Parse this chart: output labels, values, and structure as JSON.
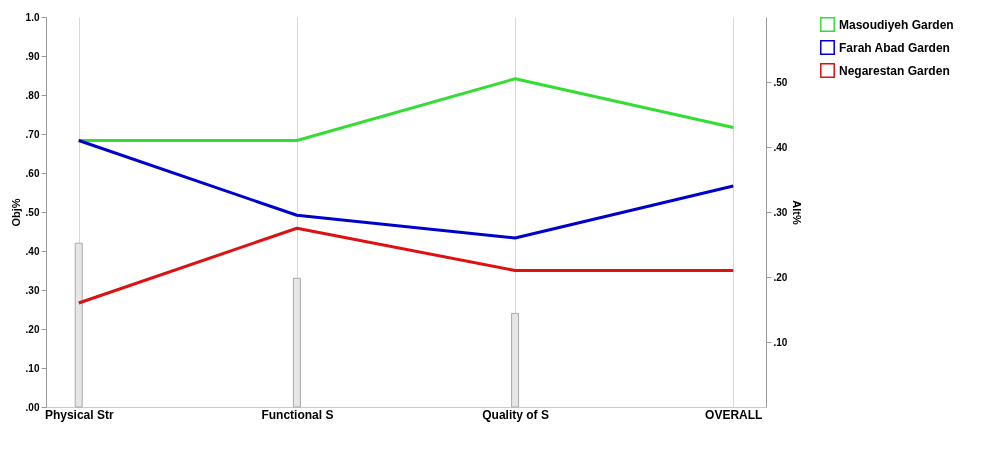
{
  "chart_data": {
    "type": "line",
    "categories": [
      "Physical Str",
      "Functional S",
      "Quality of S",
      "OVERALL"
    ],
    "ylabel": "Obj%",
    "y2label": "Alt%",
    "series": [
      {
        "type": "bar",
        "axis": "y",
        "color": "#e6e6e6",
        "values": [
          0.42,
          0.33,
          0.24,
          null
        ]
      },
      {
        "name": "Masoudiyeh Garden",
        "axis": "y2",
        "color": "#33dd33",
        "values": [
          0.41,
          0.41,
          0.505,
          0.43
        ]
      },
      {
        "name": "Farah Abad Garden",
        "axis": "y2",
        "color": "#0000cc",
        "values": [
          0.41,
          0.295,
          0.26,
          0.34
        ]
      },
      {
        "name": "Negarestan Garden",
        "axis": "y2",
        "color": "#dd1111",
        "values": [
          0.16,
          0.275,
          0.21,
          0.21
        ]
      }
    ],
    "ylim": [
      0,
      1
    ],
    "yticks": [
      {
        "value": 0,
        "label": ".00"
      },
      {
        "value": 0.1,
        "label": ".10"
      },
      {
        "value": 0.2,
        "label": ".20"
      },
      {
        "value": 0.3,
        "label": ".30"
      },
      {
        "value": 0.4,
        "label": ".40"
      },
      {
        "value": 0.5,
        "label": ".50"
      },
      {
        "value": 0.6,
        "label": ".60"
      },
      {
        "value": 0.7,
        "label": ".70"
      },
      {
        "value": 0.8,
        "label": ".80"
      },
      {
        "value": 0.9,
        "label": ".90"
      },
      {
        "value": 1,
        "label": "1.0"
      }
    ],
    "y2lim": [
      0,
      0.6
    ],
    "y2ticks": [
      {
        "value": 0.1,
        "label": ".10"
      },
      {
        "value": 0.2,
        "label": ".20"
      },
      {
        "value": 0.3,
        "label": ".30"
      },
      {
        "value": 0.4,
        "label": ".40"
      },
      {
        "value": 0.5,
        "label": ".50"
      }
    ],
    "grid": "x",
    "legend": "right",
    "marker": "none",
    "line_style": "solid"
  }
}
